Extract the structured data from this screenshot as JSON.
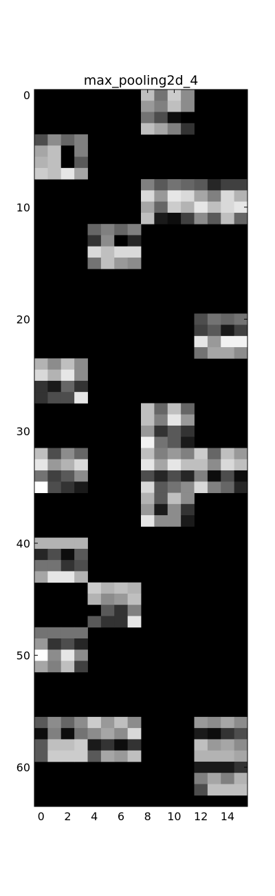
{
  "chart_data": {
    "type": "heatmap",
    "title": "max_pooling2d_4",
    "xlabel": "",
    "ylabel": "",
    "cols": 16,
    "rows": 64,
    "xlim": [
      -0.5,
      15.5
    ],
    "ylim": [
      63.5,
      -0.5
    ],
    "colormap": "gray",
    "value_range": [
      0,
      1
    ],
    "x_ticks": [
      0,
      2,
      4,
      6,
      8,
      10,
      12,
      14
    ],
    "y_ticks": [
      0,
      10,
      20,
      30,
      40,
      50,
      60
    ],
    "x_tick_labels": [
      "0",
      "2",
      "4",
      "6",
      "8",
      "10",
      "12",
      "14"
    ],
    "y_tick_labels": [
      "0",
      "10",
      "20",
      "30",
      "40",
      "50",
      "60"
    ],
    "grid": false,
    "legend": "none",
    "blocks": [
      {
        "row": 0,
        "col": 8,
        "values": [
          [
            0.75,
            0.45,
            0.8,
            0.55
          ],
          [
            0.6,
            0.5,
            0.75,
            0.55
          ],
          [
            0.45,
            0.3,
            0.05,
            0.0
          ],
          [
            0.75,
            0.65,
            0.5,
            0.2
          ]
        ]
      },
      {
        "row": 4,
        "col": 0,
        "values": [
          [
            0.3,
            0.55,
            0.4,
            0.5
          ],
          [
            0.65,
            0.75,
            0.0,
            0.5
          ],
          [
            0.7,
            0.75,
            0.0,
            0.35
          ],
          [
            0.8,
            0.75,
            0.9,
            0.65
          ]
        ]
      },
      {
        "row": 8,
        "col": 8,
        "values": [
          [
            0.5,
            0.35,
            0.45,
            0.4,
            0.35,
            0.15,
            0.25,
            0.25
          ],
          [
            0.85,
            0.6,
            0.9,
            0.85,
            0.65,
            0.5,
            0.85,
            0.7
          ],
          [
            0.65,
            0.4,
            0.8,
            0.7,
            0.9,
            0.75,
            0.85,
            0.9
          ],
          [
            0.75,
            0.1,
            0.05,
            0.25,
            0.55,
            0.35,
            0.75,
            0.4
          ]
        ]
      },
      {
        "row": 12,
        "col": 4,
        "values": [
          [
            0.4,
            0.5,
            0.4,
            0.5
          ],
          [
            0.2,
            0.55,
            0.0,
            0.15
          ],
          [
            0.85,
            0.75,
            0.85,
            0.85
          ],
          [
            0.45,
            0.75,
            0.6,
            0.55
          ]
        ]
      },
      {
        "row": 20,
        "col": 12,
        "values": [
          [
            0.3,
            0.45,
            0.4,
            0.45
          ],
          [
            0.25,
            0.35,
            0.1,
            0.25
          ],
          [
            0.9,
            0.6,
            0.95,
            0.95
          ],
          [
            0.45,
            0.65,
            0.65,
            0.55
          ]
        ]
      },
      {
        "row": 24,
        "col": 0,
        "values": [
          [
            0.7,
            0.55,
            0.75,
            0.55
          ],
          [
            0.85,
            0.7,
            0.9,
            0.55
          ],
          [
            0.2,
            0.1,
            0.4,
            0.2
          ],
          [
            0.2,
            0.3,
            0.3,
            0.9
          ]
        ]
      },
      {
        "row": 28,
        "col": 8,
        "values": [
          [
            0.75,
            0.4,
            0.75,
            0.4
          ],
          [
            0.75,
            0.5,
            0.9,
            0.6
          ],
          [
            0.6,
            0.2,
            0.35,
            0.2
          ],
          [
            0.95,
            0.45,
            0.35,
            0.1
          ]
        ]
      },
      {
        "row": 32,
        "col": 0,
        "values": [
          [
            0.75,
            0.3,
            0.55,
            0.4
          ],
          [
            0.9,
            0.6,
            0.7,
            0.85
          ],
          [
            0.45,
            0.25,
            0.35,
            0.55
          ],
          [
            1.0,
            0.3,
            0.2,
            0.1
          ]
        ]
      },
      {
        "row": 32,
        "col": 8,
        "values": [
          [
            0.75,
            0.5,
            0.6,
            0.5,
            0.8,
            0.4,
            0.75,
            0.6
          ],
          [
            0.9,
            0.65,
            0.9,
            0.75,
            0.75,
            0.55,
            0.85,
            0.75
          ],
          [
            0.3,
            0.15,
            0.3,
            0.15,
            0.5,
            0.05,
            0.3,
            0.05
          ],
          [
            0.85,
            0.35,
            0.45,
            0.55,
            0.85,
            0.5,
            0.4,
            0.15
          ]
        ]
      },
      {
        "row": 36,
        "col": 8,
        "values": [
          [
            0.7,
            0.35,
            0.75,
            0.55
          ],
          [
            0.6,
            0.1,
            0.55,
            0.2
          ],
          [
            0.9,
            0.55,
            0.55,
            0.1
          ]
        ]
      },
      {
        "row": 40,
        "col": 0,
        "values": [
          [
            0.7,
            0.7,
            0.7,
            0.7
          ],
          [
            0.15,
            0.3,
            0.05,
            0.35
          ],
          [
            0.45,
            0.45,
            0.2,
            0.3
          ],
          [
            0.65,
            0.9,
            0.9,
            0.7
          ]
        ]
      },
      {
        "row": 44,
        "col": 4,
        "values": [
          [
            0.8,
            0.7,
            0.75,
            0.7
          ],
          [
            0.7,
            0.55,
            0.6,
            0.75
          ],
          [
            0.0,
            0.35,
            0.2,
            0.5
          ],
          [
            0.35,
            0.2,
            0.2,
            0.9
          ]
        ]
      },
      {
        "row": 48,
        "col": 0,
        "values": [
          [
            0.45,
            0.45,
            0.45,
            0.45
          ],
          [
            0.6,
            0.2,
            0.3,
            0.15
          ],
          [
            1.0,
            0.55,
            0.9,
            0.55
          ],
          [
            0.65,
            0.5,
            0.75,
            0.25
          ]
        ]
      },
      {
        "row": 56,
        "col": 0,
        "values": [
          [
            0.35,
            0.55,
            0.4,
            0.55,
            0.8,
            0.6,
            0.75,
            0.55
          ],
          [
            0.05,
            0.5,
            0.05,
            0.45,
            0.55,
            0.65,
            0.55,
            0.85
          ],
          [
            0.35,
            0.75,
            0.75,
            0.8,
            0.1,
            0.2,
            0.05,
            0.2
          ],
          [
            0.35,
            0.8,
            0.8,
            0.8,
            0.35,
            0.65,
            0.6,
            0.75
          ]
        ]
      },
      {
        "row": 56,
        "col": 12,
        "values": [
          [
            0.6,
            0.55,
            0.65,
            0.55
          ],
          [
            0.1,
            0.05,
            0.2,
            0.3
          ],
          [
            0.75,
            0.6,
            0.65,
            0.55
          ],
          [
            0.7,
            0.7,
            0.7,
            0.65
          ],
          [
            0.1,
            0.1,
            0.1,
            0.2
          ],
          [
            0.5,
            0.65,
            0.5,
            0.7
          ],
          [
            0.3,
            0.75,
            0.75,
            0.75
          ]
        ]
      }
    ]
  }
}
